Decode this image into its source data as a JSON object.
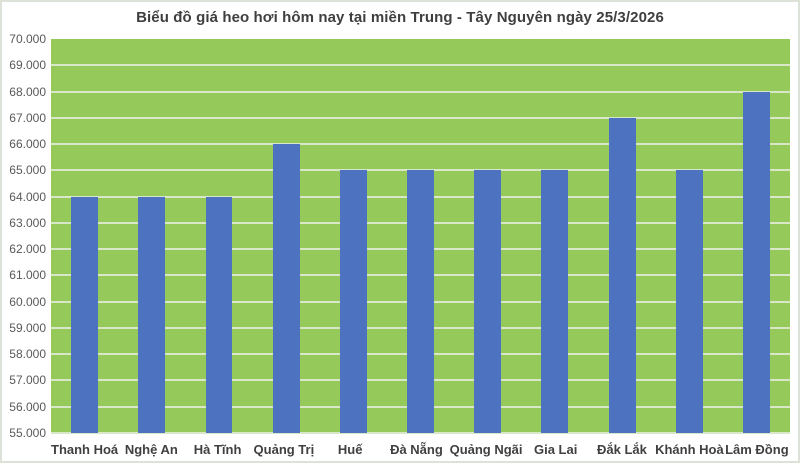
{
  "chart_data": {
    "type": "bar",
    "title": "Biểu đồ giá heo hơi hôm nay tại miền Trung - Tây Nguyên ngày 25/3/2026",
    "categories": [
      "Thanh Hoá",
      "Nghệ An",
      "Hà Tĩnh",
      "Quảng Trị",
      "Huế",
      "Đà Nẵng",
      "Quảng Ngãi",
      "Gia Lai",
      "Đắk Lắk",
      "Khánh Hoà",
      "Lâm Đồng"
    ],
    "values": [
      64000,
      64000,
      64000,
      66000,
      65000,
      65000,
      65000,
      65000,
      67000,
      65000,
      68000
    ],
    "xlabel": "",
    "ylabel": "",
    "ylim": [
      55000,
      70000
    ],
    "ytick_step": 1000,
    "ytick_labels_top_to_bottom": [
      "70.000",
      "69.000",
      "68.000",
      "67.000",
      "66.000",
      "65.000",
      "64.000",
      "63.000",
      "62.000",
      "61.000",
      "60.000",
      "59.000",
      "58.000",
      "57.000",
      "56.000",
      "55.000"
    ],
    "grid": true,
    "legend": false,
    "data_labels": false,
    "colors": {
      "bar": "#4c72c0",
      "plot_background": "#95c95a",
      "gridline": "#d9e7c9",
      "title_text": "#3f3f3f",
      "axis_text": "#595959",
      "category_text": "#404040",
      "page_background": "#ffffff",
      "frame_border": "#dde2d8"
    }
  }
}
